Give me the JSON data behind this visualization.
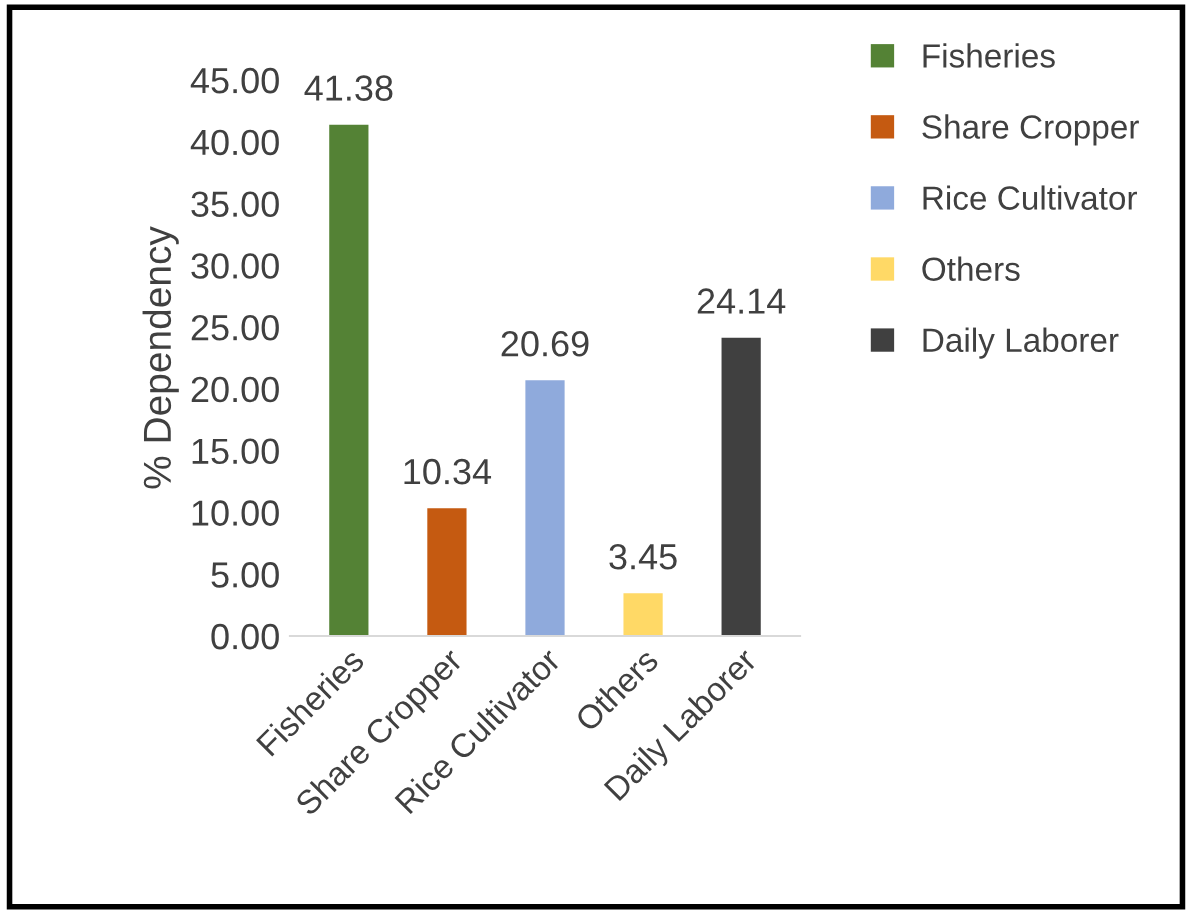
{
  "chart_data": {
    "type": "bar",
    "ylabel": "% Dependency",
    "categories": [
      "Fisheries",
      "Share Cropper",
      "Rice Cultivator",
      "Others",
      "Daily Laborer"
    ],
    "series": [
      {
        "name": "Fisheries",
        "color": "#548235",
        "values": [
          41.38,
          null,
          null,
          null,
          null
        ]
      },
      {
        "name": "Share Cropper",
        "color": "#c55a11",
        "values": [
          null,
          10.34,
          null,
          null,
          null
        ]
      },
      {
        "name": "Rice Cultivator",
        "color": "#8faadc",
        "values": [
          null,
          null,
          20.69,
          null,
          null
        ]
      },
      {
        "name": "Others",
        "color": "#ffd966",
        "values": [
          null,
          null,
          null,
          3.45,
          null
        ]
      },
      {
        "name": "Daily Laborer",
        "color": "#404040",
        "values": [
          null,
          null,
          null,
          null,
          24.14
        ]
      }
    ],
    "ylim": [
      0,
      45
    ],
    "yticks": [
      {
        "value": 0,
        "label": "0.00"
      },
      {
        "value": 5,
        "label": "5.00"
      },
      {
        "value": 10,
        "label": "10.00"
      },
      {
        "value": 15,
        "label": "15.00"
      },
      {
        "value": 20,
        "label": "20.00"
      },
      {
        "value": 25,
        "label": "25.00"
      },
      {
        "value": 30,
        "label": "30.00"
      },
      {
        "value": 35,
        "label": "35.00"
      },
      {
        "value": 40,
        "label": "40.00"
      },
      {
        "value": 45,
        "label": "45.00"
      }
    ],
    "data_labels": true,
    "grid": false,
    "legend": "right"
  }
}
